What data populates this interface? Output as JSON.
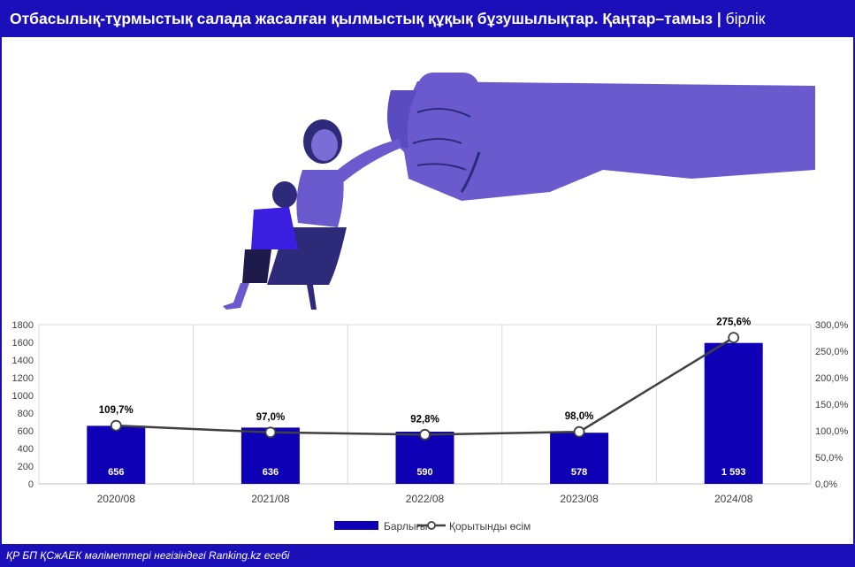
{
  "header": {
    "title": "Отбасылық-тұрмыстық салада жасалған қылмыстық құқық бұзушылықтар. Қаңтар–тамыз",
    "separator": " | ",
    "unit": "бірлік"
  },
  "footer": {
    "source": "ҚР БП ҚСжАЕК мәліметтері негізіндегі Ranking.kz есебі"
  },
  "colors": {
    "brand": "#1a0fb8",
    "bar": "#0d00b5",
    "line": "#404040",
    "illustration_purple": "#6a5acd",
    "illustration_dark": "#2e2a7a"
  },
  "illustration": {
    "icons": [
      "fist-icon",
      "mother-figure-icon",
      "child-figure-icon"
    ]
  },
  "chart_data": {
    "type": "bar",
    "categories": [
      "2020/08",
      "2021/08",
      "2022/08",
      "2023/08",
      "2024/08"
    ],
    "series": [
      {
        "name": "Барлығы",
        "type": "bar",
        "axis": "left",
        "values": [
          656,
          636,
          590,
          578,
          1593
        ],
        "labels": [
          "656",
          "636",
          "590",
          "578",
          "1 593"
        ]
      },
      {
        "name": "Қорытынды өсім",
        "type": "line",
        "axis": "right",
        "values": [
          109.7,
          97.0,
          92.8,
          98.0,
          275.6
        ],
        "labels": [
          "109,7%",
          "97,0%",
          "92,8%",
          "98,0%",
          "275,6%"
        ]
      }
    ],
    "y_left": {
      "min": 0,
      "max": 1800,
      "ticks": [
        "0",
        "200",
        "400",
        "600",
        "800",
        "1000",
        "1200",
        "1400",
        "1600",
        "1800"
      ]
    },
    "y_right": {
      "min": 0,
      "max": 300,
      "ticks": [
        "0,0%",
        "50,0%",
        "100,0%",
        "150,0%",
        "200,0%",
        "250,0%",
        "300,0%"
      ]
    },
    "grid": "vertical",
    "legend_position": "bottom"
  }
}
